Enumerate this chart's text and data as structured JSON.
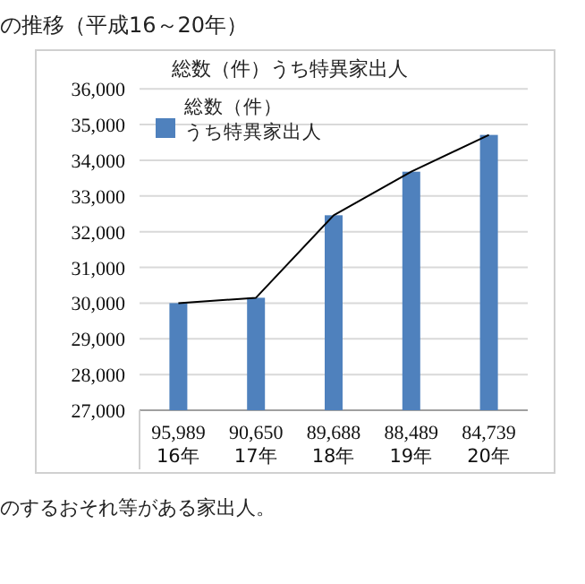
{
  "chart_data": {
    "type": "bar",
    "title": "総数（件）うち特異家出人",
    "categories": [
      "95,989\n16年",
      "90,650\n17年",
      "89,688\n18年",
      "88,489\n19年",
      "84,739\n20年"
    ],
    "series": [
      {
        "name": "うち特異家出人",
        "color": "#4f81bd",
        "values": [
          30000,
          30150,
          32460,
          33680,
          34710
        ]
      },
      {
        "type": "line",
        "color": "#000000",
        "values": [
          30000,
          30150,
          32460,
          33680,
          34710
        ]
      }
    ],
    "ylim": [
      27000,
      36000
    ],
    "yticks": [
      {
        "value": 27000,
        "label": "27,000"
      },
      {
        "value": 28000,
        "label": "28,000"
      },
      {
        "value": 29000,
        "label": "29,000"
      },
      {
        "value": 30000,
        "label": "30,000"
      },
      {
        "value": 31000,
        "label": "31,000"
      },
      {
        "value": 32000,
        "label": "32,000"
      },
      {
        "value": 33000,
        "label": "33,000"
      },
      {
        "value": 34000,
        "label": "34,000"
      },
      {
        "value": 35000,
        "label": "35,000"
      },
      {
        "value": 36000,
        "label": "36,000"
      }
    ],
    "grid": "y",
    "legend": "top left",
    "legend_title": "総数（件）",
    "annotations": [
      "の推移（平成16～20年）",
      "のするおそれ等がある家出人。"
    ]
  }
}
